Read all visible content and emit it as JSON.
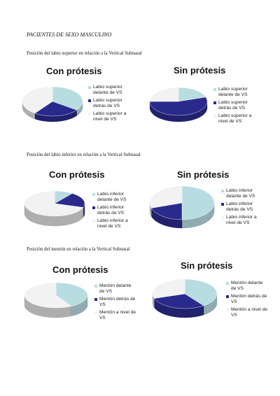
{
  "page_title": "PACIENTES DE SEXO MASCULINO",
  "sections": [
    {
      "title": "Posición del labio superior en relación a la Vertical Subnasal"
    },
    {
      "title": "Posición del labio inferior en relación a la Vertical Subnasal"
    },
    {
      "title": "Posición del mentón en relación a la Vertical Subnasal"
    }
  ],
  "colors": {
    "delante": "#b8dde1",
    "detras": "#2a2a8c",
    "nivel": "#f2f2f2"
  },
  "chart_data": [
    {
      "type": "pie",
      "title": "Con prótesis",
      "categories": [
        "Labio superior delante de VS",
        "Labio superior detrás de VS",
        "Labio superior a nivel de VS"
      ],
      "values": [
        35,
        25,
        40
      ]
    },
    {
      "type": "pie",
      "title": "Sin prótesis",
      "categories": [
        "Labio superior delante de VS",
        "Labio superior detrás de VS",
        "Labio superior a nivel de VS"
      ],
      "values": [
        20,
        55,
        25
      ]
    },
    {
      "type": "pie",
      "title": "Con prótesis",
      "categories": [
        "Labio inferior delante de VS",
        "Labio inferior detrás de VS",
        "Labio inferior a nivel de VS"
      ],
      "values": [
        10,
        20,
        70
      ]
    },
    {
      "type": "pie",
      "title": "Sin prótesis",
      "categories": [
        "Labio inferior delante de VS",
        "Labio inferior detrás de VS",
        "Labio inferior a nivel de VS"
      ],
      "values": [
        50,
        20,
        30
      ]
    },
    {
      "type": "pie",
      "title": "Con prótesis",
      "categories": [
        "Mentón delante de VS",
        "Mentón detrás de VS",
        "Mentón a nivel de VS"
      ],
      "values": [
        42,
        0,
        58
      ]
    },
    {
      "type": "pie",
      "title": "Sin prótesis",
      "categories": [
        "Mentón delante de VS",
        "Mentón detrás de VS",
        "Mentón a nivel de VS"
      ],
      "values": [
        40,
        30,
        30
      ]
    }
  ]
}
